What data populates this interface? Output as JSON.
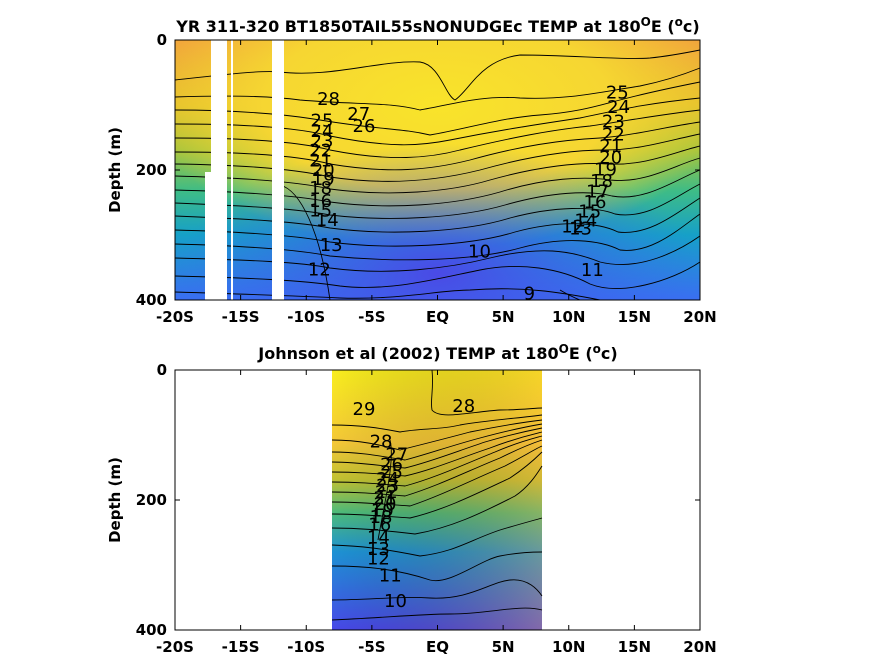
{
  "chart_data": [
    {
      "type": "heatmap",
      "title": "YR 311-320 BT1850TAIL55sNONUDGEc TEMP at 180",
      "title_deg": "O",
      "title_mid": "E (",
      "title_unit_sup": "o",
      "title_end": "c)",
      "xlabel": "",
      "ylabel": "Depth (m)",
      "x_ticks": [
        "-20S",
        "-15S",
        "-10S",
        "-5S",
        "EQ",
        "5N",
        "10N",
        "15N",
        "20N"
      ],
      "y_ticks": [
        "0",
        "200",
        "400"
      ],
      "xlim": [
        -20,
        20
      ],
      "ylim": [
        0,
        400
      ],
      "grid": false,
      "missing_bands_lat": [
        [
          -18.9,
          -17.7
        ],
        [
          -16.7,
          -15.0
        ],
        [
          -13.3,
          -12.4
        ]
      ],
      "contour_labels": [
        {
          "text": "28",
          "lat": -8.3,
          "depth": 91
        },
        {
          "text": "27",
          "lat": -6.0,
          "depth": 114
        },
        {
          "text": "26",
          "lat": -5.6,
          "depth": 132
        },
        {
          "text": "25",
          "lat": -8.8,
          "depth": 124
        },
        {
          "text": "24",
          "lat": -8.8,
          "depth": 140
        },
        {
          "text": "23",
          "lat": -8.8,
          "depth": 155
        },
        {
          "text": "22",
          "lat": -8.9,
          "depth": 170
        },
        {
          "text": "21",
          "lat": -8.9,
          "depth": 185
        },
        {
          "text": "20",
          "lat": -8.7,
          "depth": 200
        },
        {
          "text": "19",
          "lat": -8.7,
          "depth": 214
        },
        {
          "text": "18",
          "lat": -8.9,
          "depth": 228
        },
        {
          "text": "16",
          "lat": -8.9,
          "depth": 248
        },
        {
          "text": "15",
          "lat": -8.9,
          "depth": 262
        },
        {
          "text": "14",
          "lat": -8.4,
          "depth": 277
        },
        {
          "text": "13",
          "lat": -8.1,
          "depth": 315
        },
        {
          "text": "12",
          "lat": -9.0,
          "depth": 353
        },
        {
          "text": "10",
          "lat": 3.2,
          "depth": 325
        },
        {
          "text": "9",
          "lat": 7.0,
          "depth": 390
        },
        {
          "text": "11",
          "lat": 11.8,
          "depth": 354
        },
        {
          "text": "12",
          "lat": 10.3,
          "depth": 287
        },
        {
          "text": "25",
          "lat": 13.7,
          "depth": 81
        },
        {
          "text": "24",
          "lat": 13.8,
          "depth": 103
        },
        {
          "text": "23",
          "lat": 13.4,
          "depth": 125
        },
        {
          "text": "22",
          "lat": 13.4,
          "depth": 145
        },
        {
          "text": "21",
          "lat": 13.2,
          "depth": 163
        },
        {
          "text": "20",
          "lat": 13.2,
          "depth": 181
        },
        {
          "text": "19",
          "lat": 12.8,
          "depth": 199
        },
        {
          "text": "18",
          "lat": 12.5,
          "depth": 217
        },
        {
          "text": "17",
          "lat": 12.2,
          "depth": 233
        },
        {
          "text": "16",
          "lat": 12.0,
          "depth": 249
        },
        {
          "text": "15",
          "lat": 11.6,
          "depth": 264
        },
        {
          "text": "14",
          "lat": 11.3,
          "depth": 278
        },
        {
          "text": "13",
          "lat": 10.9,
          "depth": 290
        }
      ]
    },
    {
      "type": "heatmap",
      "title": "Johnson et al (2002) TEMP at 180",
      "title_deg": "O",
      "title_mid": "E (",
      "title_unit_sup": "o",
      "title_end": "c)",
      "xlabel": "",
      "ylabel": "Depth (m)",
      "x_ticks": [
        "-20S",
        "-15S",
        "-10S",
        "-5S",
        "EQ",
        "5N",
        "10N",
        "15N",
        "20N"
      ],
      "y_ticks": [
        "0",
        "200",
        "400"
      ],
      "xlim": [
        -20,
        20
      ],
      "ylim": [
        0,
        400
      ],
      "data_lat_range": [
        -8,
        8
      ],
      "grid": false,
      "contour_labels": [
        {
          "text": "29",
          "lat": -5.6,
          "depth": 60
        },
        {
          "text": "28",
          "lat": 2.0,
          "depth": 55
        },
        {
          "text": "28",
          "lat": -4.3,
          "depth": 110
        },
        {
          "text": "27",
          "lat": -3.1,
          "depth": 130
        },
        {
          "text": "26",
          "lat": -3.5,
          "depth": 145
        },
        {
          "text": "25",
          "lat": -3.5,
          "depth": 157
        },
        {
          "text": "24",
          "lat": -3.8,
          "depth": 168
        },
        {
          "text": "23",
          "lat": -3.8,
          "depth": 178
        },
        {
          "text": "22",
          "lat": -3.9,
          "depth": 188
        },
        {
          "text": "21",
          "lat": -4.0,
          "depth": 197
        },
        {
          "text": "20",
          "lat": -4.0,
          "depth": 206
        },
        {
          "text": "19",
          "lat": -4.2,
          "depth": 216
        },
        {
          "text": "18",
          "lat": -4.3,
          "depth": 226
        },
        {
          "text": "16",
          "lat": -4.4,
          "depth": 238
        },
        {
          "text": "14",
          "lat": -4.5,
          "depth": 258
        },
        {
          "text": "13",
          "lat": -4.5,
          "depth": 275
        },
        {
          "text": "12",
          "lat": -4.5,
          "depth": 290
        },
        {
          "text": "11",
          "lat": -3.6,
          "depth": 316
        },
        {
          "text": "10",
          "lat": -3.2,
          "depth": 355
        }
      ]
    }
  ]
}
